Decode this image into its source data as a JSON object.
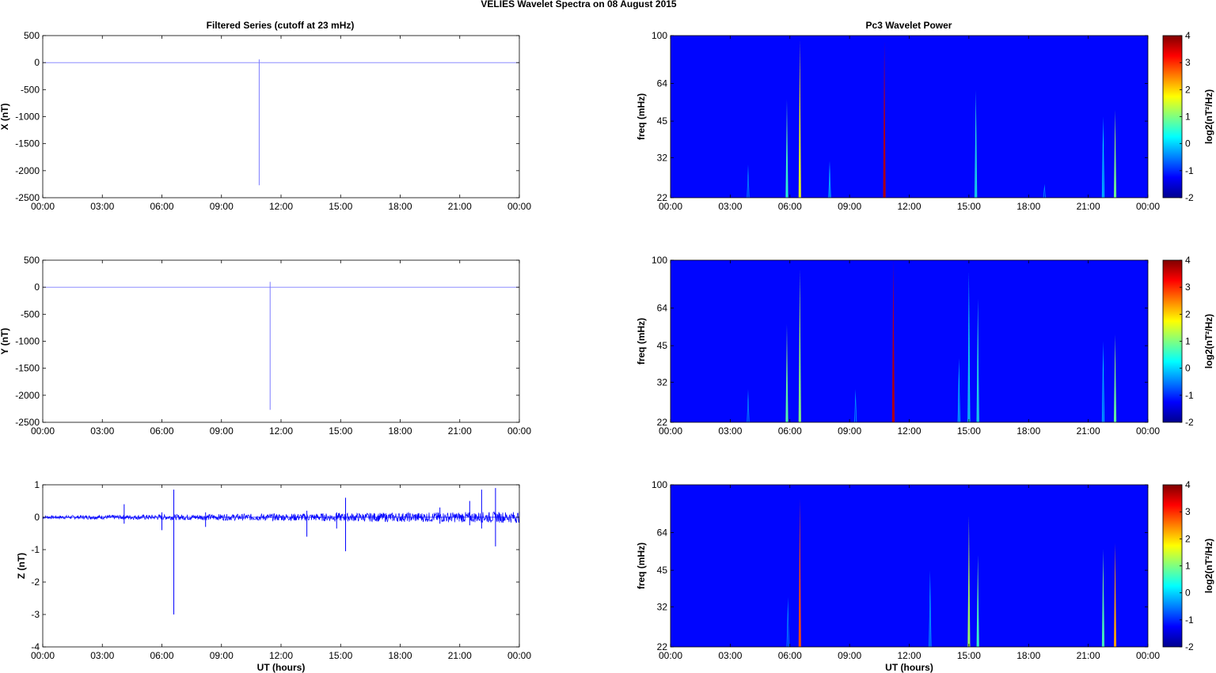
{
  "figure": {
    "suptitle": "VELIES Wavelet Spectra on 08 August    2015",
    "left_title": "Filtered Series (cutoff at 23 mHz)",
    "right_title": "Pc3 Wavelet Power",
    "xlabel": "UT (hours)"
  },
  "chart_data": [
    {
      "type": "line",
      "title": "Filtered Series (cutoff at 23 mHz)",
      "ylabel": "X (nT)",
      "xlabel": "",
      "xlim": [
        0,
        24
      ],
      "ylim": [
        -2500,
        500
      ],
      "yticks": [
        500,
        0,
        -500,
        -1000,
        -1500,
        -2000,
        -2500
      ],
      "xticks": [
        "00:00",
        "03:00",
        "06:00",
        "09:00",
        "12:00",
        "15:00",
        "18:00",
        "21:00",
        "00:00"
      ],
      "series": [
        {
          "color": "#7b7bff",
          "baseline": 0,
          "spikes": [
            {
              "x": 10.9,
              "min": -2270,
              "max": 60
            }
          ]
        }
      ]
    },
    {
      "type": "line",
      "title": "",
      "ylabel": "Y (nT)",
      "xlabel": "",
      "xlim": [
        0,
        24
      ],
      "ylim": [
        -2500,
        500
      ],
      "yticks": [
        500,
        0,
        -500,
        -1000,
        -1500,
        -2000,
        -2500
      ],
      "xticks": [
        "00:00",
        "03:00",
        "06:00",
        "09:00",
        "12:00",
        "15:00",
        "18:00",
        "21:00",
        "00:00"
      ],
      "series": [
        {
          "color": "#7b7bff",
          "baseline": 0,
          "spikes": [
            {
              "x": 11.45,
              "min": -2270,
              "max": 100
            }
          ]
        }
      ]
    },
    {
      "type": "line",
      "title": "",
      "ylabel": "Z (nT)",
      "xlabel": "UT (hours)",
      "xlim": [
        0,
        24
      ],
      "ylim": [
        -4,
        1
      ],
      "yticks": [
        1,
        0,
        -1,
        -2,
        -3,
        -4
      ],
      "xticks": [
        "00:00",
        "03:00",
        "06:00",
        "09:00",
        "12:00",
        "15:00",
        "18:00",
        "21:00",
        "00:00"
      ],
      "series": [
        {
          "color": "#0000ff",
          "baseline": 0,
          "noise": 0.05,
          "spikes": [
            {
              "x": 4.1,
              "min": -0.2,
              "max": 0.4
            },
            {
              "x": 6.6,
              "min": -3.0,
              "max": 0.85
            },
            {
              "x": 6.0,
              "min": -0.4,
              "max": 0.15
            },
            {
              "x": 8.2,
              "min": -0.3,
              "max": 0.15
            },
            {
              "x": 13.3,
              "min": -0.6,
              "max": 0.2
            },
            {
              "x": 15.25,
              "min": -1.05,
              "max": 0.6
            },
            {
              "x": 14.8,
              "min": -0.35,
              "max": 0.15
            },
            {
              "x": 20.0,
              "min": -0.2,
              "max": 0.3
            },
            {
              "x": 22.1,
              "min": -0.35,
              "max": 0.85
            },
            {
              "x": 22.8,
              "min": -0.9,
              "max": 0.9
            },
            {
              "x": 21.5,
              "min": -0.25,
              "max": 0.5
            }
          ]
        }
      ]
    },
    {
      "type": "heatmap",
      "title": "Pc3 Wavelet Power",
      "ylabel": "freq (mHz)",
      "xlabel": "",
      "xlim": [
        0,
        24
      ],
      "ylim": [
        22,
        100
      ],
      "yscale": "log",
      "yticks": [
        100,
        64,
        45,
        32,
        22
      ],
      "xticks": [
        "00:00",
        "03:00",
        "06:00",
        "09:00",
        "12:00",
        "15:00",
        "18:00",
        "21:00",
        "00:00"
      ],
      "colorbar": {
        "label": "log2(nT²/Hz)",
        "range": [
          -2,
          4
        ],
        "ticks": [
          4,
          3,
          2,
          1,
          0,
          -1,
          -2
        ]
      },
      "background_level": -2,
      "streaks": [
        {
          "x": 3.9,
          "level": -1.2,
          "top": 30
        },
        {
          "x": 5.85,
          "level": 0.2,
          "top": 55
        },
        {
          "x": 6.5,
          "level": 1.5,
          "top": 96
        },
        {
          "x": 8.0,
          "level": -0.8,
          "top": 31
        },
        {
          "x": 10.75,
          "level": 3.8,
          "top": 95
        },
        {
          "x": 15.35,
          "level": -0.2,
          "top": 60
        },
        {
          "x": 18.8,
          "level": -1.3,
          "top": 25
        },
        {
          "x": 21.75,
          "level": -0.6,
          "top": 47
        },
        {
          "x": 22.35,
          "level": 0.7,
          "top": 50
        }
      ]
    },
    {
      "type": "heatmap",
      "title": "",
      "ylabel": "freq (mHz)",
      "xlabel": "",
      "xlim": [
        0,
        24
      ],
      "ylim": [
        22,
        100
      ],
      "yscale": "log",
      "yticks": [
        100,
        64,
        45,
        32,
        22
      ],
      "xticks": [
        "00:00",
        "03:00",
        "06:00",
        "09:00",
        "12:00",
        "15:00",
        "18:00",
        "21:00",
        "00:00"
      ],
      "colorbar": {
        "label": "log2(nT²/Hz)",
        "range": [
          -2,
          4
        ],
        "ticks": [
          4,
          3,
          2,
          1,
          0,
          -1,
          -2
        ]
      },
      "background_level": -2,
      "streaks": [
        {
          "x": 3.9,
          "level": -1.2,
          "top": 30
        },
        {
          "x": 5.85,
          "level": 0.5,
          "top": 55
        },
        {
          "x": 6.5,
          "level": 0.8,
          "top": 92
        },
        {
          "x": 9.3,
          "level": -1.2,
          "top": 30
        },
        {
          "x": 11.2,
          "level": 3.8,
          "top": 100
        },
        {
          "x": 14.5,
          "level": -0.8,
          "top": 40
        },
        {
          "x": 15.0,
          "level": -0.4,
          "top": 90
        },
        {
          "x": 15.45,
          "level": -0.2,
          "top": 70
        },
        {
          "x": 21.75,
          "level": -0.8,
          "top": 47
        },
        {
          "x": 22.35,
          "level": 0.6,
          "top": 50
        }
      ]
    },
    {
      "type": "heatmap",
      "title": "",
      "ylabel": "freq (mHz)",
      "xlabel": "UT (hours)",
      "xlim": [
        0,
        24
      ],
      "ylim": [
        22,
        100
      ],
      "yscale": "log",
      "yticks": [
        100,
        64,
        45,
        32,
        22
      ],
      "xticks": [
        "00:00",
        "03:00",
        "06:00",
        "09:00",
        "12:00",
        "15:00",
        "18:00",
        "21:00",
        "00:00"
      ],
      "colorbar": {
        "label": "log2(nT²/Hz)",
        "range": [
          -2,
          4
        ],
        "ticks": [
          4,
          3,
          2,
          1,
          0,
          -1,
          -2
        ]
      },
      "background_level": -2,
      "streaks": [
        {
          "x": 5.9,
          "level": -1.2,
          "top": 35
        },
        {
          "x": 6.5,
          "level": 2.8,
          "top": 88
        },
        {
          "x": 13.05,
          "level": -1.0,
          "top": 45
        },
        {
          "x": 15.0,
          "level": 1.0,
          "top": 75
        },
        {
          "x": 15.45,
          "level": 0.3,
          "top": 52
        },
        {
          "x": 21.75,
          "level": 0.4,
          "top": 55
        },
        {
          "x": 22.35,
          "level": 2.2,
          "top": 58
        }
      ]
    }
  ]
}
